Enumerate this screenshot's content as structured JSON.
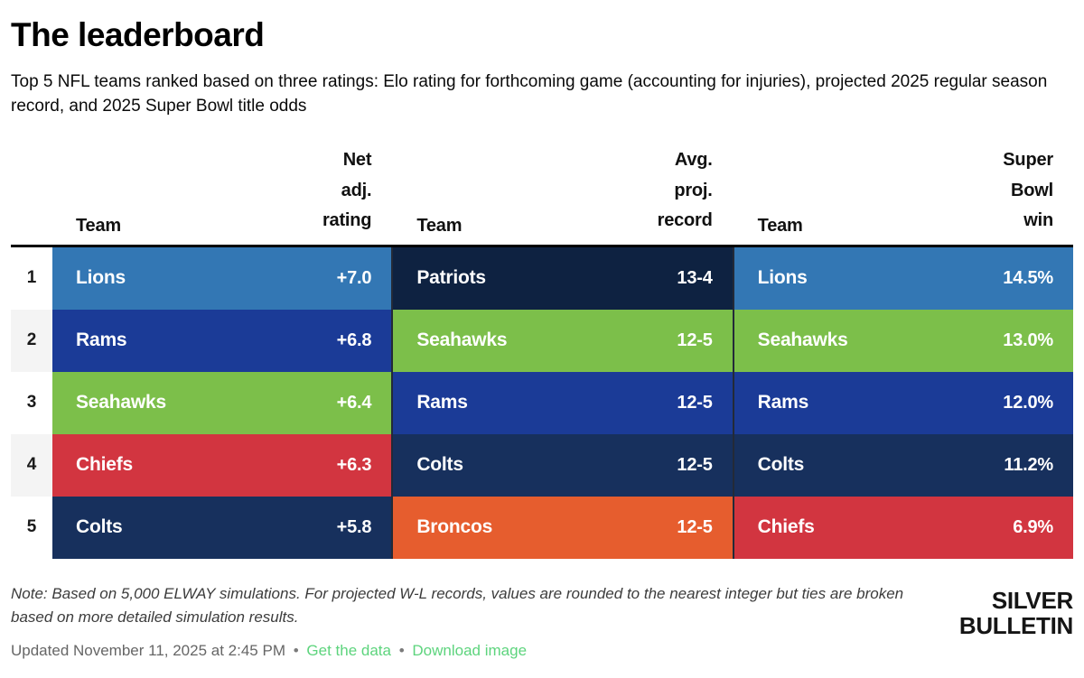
{
  "header": {
    "title": "The leaderboard",
    "subtitle": "Top 5 NFL teams ranked based on three ratings: Elo rating for forthcoming game (accounting for injuries), projected 2025 regular season record, and 2025 Super Bowl title odds"
  },
  "board": {
    "ranks": [
      "1",
      "2",
      "3",
      "4",
      "5"
    ],
    "tables": [
      {
        "team_header": "Team",
        "value_header": "Net adj. rating",
        "rows": [
          {
            "team": "Lions",
            "value": "+7.0",
            "color": "#3377b4"
          },
          {
            "team": "Rams",
            "value": "+6.8",
            "color": "#1b3b97"
          },
          {
            "team": "Seahawks",
            "value": "+6.4",
            "color": "#7cbf4a"
          },
          {
            "team": "Chiefs",
            "value": "+6.3",
            "color": "#d23540"
          },
          {
            "team": "Colts",
            "value": "+5.8",
            "color": "#17305d"
          }
        ]
      },
      {
        "team_header": "Team",
        "value_header": "Avg. proj. record",
        "rows": [
          {
            "team": "Patriots",
            "value": "13-4",
            "color": "#0e2241"
          },
          {
            "team": "Seahawks",
            "value": "12-5",
            "color": "#7cbf4a"
          },
          {
            "team": "Rams",
            "value": "12-5",
            "color": "#1b3b97"
          },
          {
            "team": "Colts",
            "value": "12-5",
            "color": "#17305d"
          },
          {
            "team": "Broncos",
            "value": "12-5",
            "color": "#e65d2e"
          }
        ]
      },
      {
        "team_header": "Team",
        "value_header": "Super Bowl win",
        "rows": [
          {
            "team": "Lions",
            "value": "14.5%",
            "color": "#3377b4"
          },
          {
            "team": "Seahawks",
            "value": "13.0%",
            "color": "#7cbf4a"
          },
          {
            "team": "Rams",
            "value": "12.0%",
            "color": "#1b3b97"
          },
          {
            "team": "Colts",
            "value": "11.2%",
            "color": "#17305d"
          },
          {
            "team": "Chiefs",
            "value": "6.9%",
            "color": "#d23540"
          }
        ]
      }
    ]
  },
  "footer": {
    "note": "Note: Based on 5,000 ELWAY simulations. For projected W-L records, values are rounded to the nearest integer but ties are broken based on more detailed simulation results.",
    "updated": "Updated November 11, 2025 at 2:45 PM",
    "bullet": "•",
    "link_get_data": "Get the data",
    "link_download": "Download image",
    "logo_line1": "SILVER",
    "logo_line2": "BULLETIN"
  },
  "colors": {
    "link_green": "#5dd47d",
    "lions_blue": "#3377b4",
    "rams_blue": "#1b3b97",
    "seahawks_green": "#7cbf4a",
    "chiefs_red": "#d23540",
    "colts_navy": "#17305d",
    "patriots_navy": "#0e2241",
    "broncos_orange": "#e65d2e",
    "rank_alt_gray": "#f4f4f4"
  },
  "chart_data": {
    "type": "table",
    "title": "The leaderboard",
    "subtitle": "Top 5 NFL teams ranked based on three ratings: Elo rating for forthcoming game (accounting for injuries), projected 2025 regular season record, and 2025 Super Bowl title odds",
    "rank_column": [
      1,
      2,
      3,
      4,
      5
    ],
    "tables": [
      {
        "columns": [
          "Team",
          "Net adj. rating"
        ],
        "rows": [
          [
            "Lions",
            "+7.0"
          ],
          [
            "Rams",
            "+6.8"
          ],
          [
            "Seahawks",
            "+6.4"
          ],
          [
            "Chiefs",
            "+6.3"
          ],
          [
            "Colts",
            "+5.8"
          ]
        ]
      },
      {
        "columns": [
          "Team",
          "Avg. proj. record"
        ],
        "rows": [
          [
            "Patriots",
            "13-4"
          ],
          [
            "Seahawks",
            "12-5"
          ],
          [
            "Rams",
            "12-5"
          ],
          [
            "Colts",
            "12-5"
          ],
          [
            "Broncos",
            "12-5"
          ]
        ]
      },
      {
        "columns": [
          "Team",
          "Super Bowl win"
        ],
        "rows": [
          [
            "Lions",
            "14.5%"
          ],
          [
            "Seahawks",
            "13.0%"
          ],
          [
            "Rams",
            "12.0%"
          ],
          [
            "Colts",
            "11.2%"
          ],
          [
            "Chiefs",
            "6.9%"
          ]
        ]
      }
    ],
    "note": "Note: Based on 5,000 ELWAY simulations. For projected W-L records, values are rounded to the nearest integer but ties are broken based on more detailed simulation results."
  }
}
